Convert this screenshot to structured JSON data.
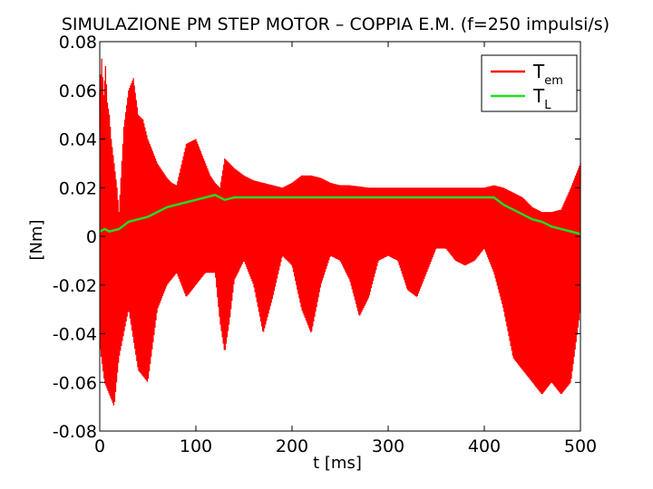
{
  "chart_data": {
    "type": "line",
    "title": "SIMULAZIONE PM STEP MOTOR – COPPIA E.M. (f=250 impulsi/s)",
    "xlabel": "t [ms]",
    "ylabel": "[Nm]",
    "xlim": [
      0,
      500
    ],
    "ylim": [
      -0.08,
      0.08
    ],
    "xticks": [
      0,
      100,
      200,
      300,
      400,
      500
    ],
    "xtick_labels": [
      "0",
      "100",
      "200",
      "300",
      "400",
      "500"
    ],
    "yticks": [
      0.08,
      0.06,
      0.04,
      0.02,
      0,
      -0.02,
      -0.04,
      -0.06,
      -0.08
    ],
    "ytick_labels": [
      "0.08",
      "0.06",
      "0.04",
      "0.02",
      "0",
      "-0.02",
      "-0.04",
      "-0.06",
      "-0.08"
    ],
    "grid": false,
    "legend_position": "top-right",
    "series": [
      {
        "name": "Tem",
        "label_main": "T",
        "label_sub": "em",
        "color": "#ff0000",
        "style": "dense oscillation (filled band)",
        "upper_envelope": {
          "t": [
            0,
            2,
            4,
            6,
            8,
            10,
            12,
            15,
            18,
            20,
            25,
            30,
            35,
            40,
            45,
            50,
            55,
            60,
            65,
            70,
            75,
            80,
            90,
            100,
            105,
            110,
            115,
            120,
            125,
            130,
            140,
            150,
            160,
            170,
            180,
            190,
            200,
            210,
            220,
            230,
            240,
            250,
            260,
            280,
            300,
            320,
            340,
            360,
            380,
            400,
            410,
            420,
            430,
            440,
            450,
            460,
            470,
            480,
            490,
            500
          ],
          "v": [
            0.06,
            0.073,
            0.058,
            0.07,
            0.055,
            0.05,
            0.04,
            0.03,
            0.02,
            0.01,
            0.045,
            0.06,
            0.065,
            0.05,
            0.048,
            0.04,
            0.035,
            0.03,
            0.027,
            0.024,
            0.022,
            0.021,
            0.038,
            0.04,
            0.035,
            0.03,
            0.025,
            0.022,
            0.02,
            0.032,
            0.028,
            0.025,
            0.023,
            0.022,
            0.021,
            0.02,
            0.022,
            0.025,
            0.025,
            0.024,
            0.022,
            0.021,
            0.021,
            0.02,
            0.02,
            0.02,
            0.02,
            0.02,
            0.02,
            0.02,
            0.021,
            0.02,
            0.018,
            0.016,
            0.012,
            0.01,
            0.01,
            0.011,
            0.02,
            0.03
          ]
        },
        "lower_envelope": {
          "t": [
            0,
            5,
            10,
            15,
            20,
            25,
            30,
            40,
            50,
            55,
            60,
            70,
            80,
            90,
            100,
            110,
            120,
            125,
            130,
            135,
            140,
            150,
            160,
            170,
            180,
            190,
            200,
            210,
            220,
            230,
            240,
            250,
            260,
            270,
            280,
            290,
            300,
            310,
            320,
            330,
            340,
            350,
            360,
            370,
            380,
            390,
            400,
            410,
            420,
            430,
            440,
            450,
            460,
            470,
            480,
            490,
            500
          ],
          "v": [
            -0.045,
            -0.06,
            -0.065,
            -0.07,
            -0.05,
            -0.04,
            -0.03,
            -0.055,
            -0.06,
            -0.045,
            -0.03,
            -0.02,
            -0.015,
            -0.025,
            -0.02,
            -0.015,
            -0.015,
            -0.035,
            -0.048,
            -0.035,
            -0.018,
            -0.01,
            -0.02,
            -0.04,
            -0.025,
            -0.008,
            -0.012,
            -0.03,
            -0.04,
            -0.02,
            -0.008,
            -0.01,
            -0.018,
            -0.033,
            -0.025,
            -0.01,
            -0.008,
            -0.01,
            -0.022,
            -0.025,
            -0.015,
            -0.005,
            -0.005,
            -0.01,
            -0.012,
            -0.01,
            -0.005,
            -0.015,
            -0.03,
            -0.05,
            -0.055,
            -0.06,
            -0.065,
            -0.06,
            -0.065,
            -0.06,
            -0.03
          ]
        }
      },
      {
        "name": "TL",
        "label_main": "T",
        "label_sub": "L",
        "color": "#22dd22",
        "t": [
          0,
          5,
          10,
          20,
          30,
          40,
          50,
          60,
          70,
          80,
          90,
          100,
          110,
          120,
          125,
          130,
          140,
          150,
          160,
          180,
          200,
          220,
          240,
          260,
          280,
          300,
          320,
          340,
          360,
          380,
          400,
          410,
          420,
          430,
          440,
          450,
          460,
          470,
          480,
          490,
          500
        ],
        "v": [
          0.002,
          0.003,
          0.002,
          0.003,
          0.006,
          0.007,
          0.008,
          0.01,
          0.012,
          0.013,
          0.014,
          0.015,
          0.016,
          0.017,
          0.016,
          0.015,
          0.016,
          0.016,
          0.016,
          0.016,
          0.016,
          0.016,
          0.016,
          0.016,
          0.016,
          0.016,
          0.016,
          0.016,
          0.016,
          0.016,
          0.016,
          0.016,
          0.013,
          0.011,
          0.009,
          0.007,
          0.006,
          0.004,
          0.003,
          0.002,
          0.001
        ]
      }
    ]
  }
}
